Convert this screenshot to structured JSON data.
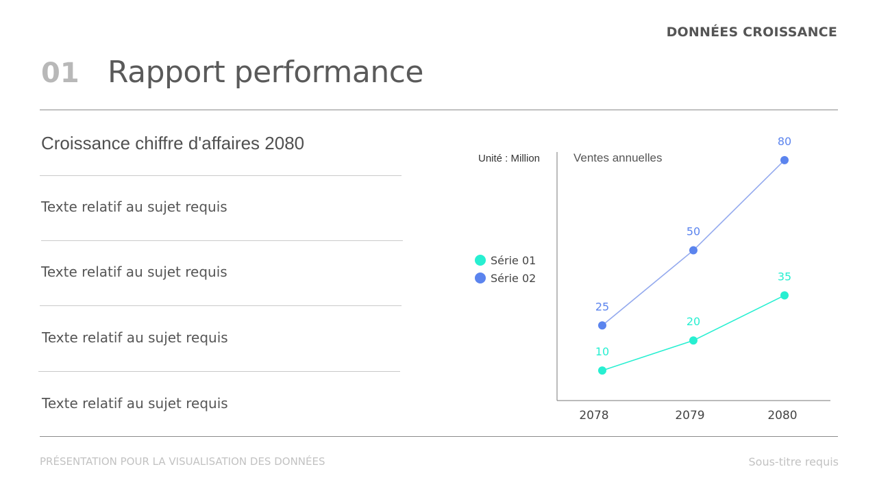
{
  "header": {
    "top_label": "DONNÉES CROISSANCE",
    "number": "01",
    "title": "Rapport performance"
  },
  "left_panel": {
    "heading": "Croissance chiffre d'affaires 2080",
    "items": [
      "Texte relatif au sujet requis",
      "Texte relatif au sujet requis",
      "Texte relatif au sujet requis",
      "Texte relatif au sujet requis"
    ]
  },
  "footer": {
    "left": "PRÉSENTATION POUR LA VISUALISATION DES DONNÉES",
    "right": "Sous-titre requis"
  },
  "colors": {
    "series_01": "#27efd1",
    "series_02": "#5b84ee",
    "line_02": "#93a9ee"
  },
  "chart_data": {
    "type": "line",
    "title": "Ventes annuelles",
    "unit_label": "Unité : Million",
    "categories": [
      "2078",
      "2079",
      "2080"
    ],
    "ylim": [
      0,
      90
    ],
    "series": [
      {
        "name": "Série 01",
        "values": [
          10,
          20,
          35
        ]
      },
      {
        "name": "Série 02",
        "values": [
          25,
          50,
          80
        ]
      }
    ],
    "legend_position": "left"
  }
}
